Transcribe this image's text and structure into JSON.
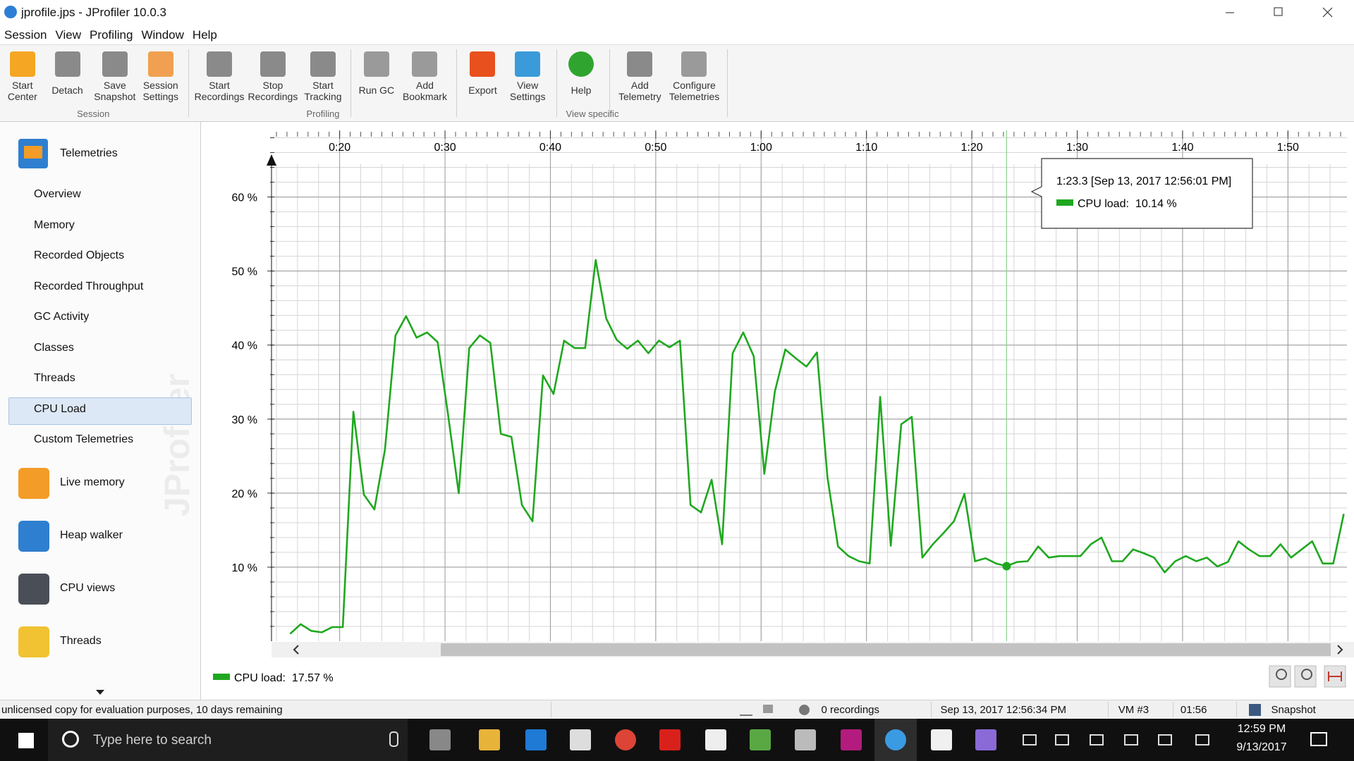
{
  "window": {
    "title": "jprofile.jps - JProfiler 10.0.3"
  },
  "menu": [
    "Session",
    "View",
    "Profiling",
    "Window",
    "Help"
  ],
  "toolbar": {
    "groups": [
      {
        "label": "Session",
        "buttons": [
          "Start\nCenter",
          "Detach",
          "Save\nSnapshot",
          "Session\nSettings"
        ]
      },
      {
        "label": "Profiling",
        "buttons": [
          "Start\nRecordings",
          "Stop\nRecordings",
          "Start\nTracking",
          "Run GC",
          "Add\nBookmark"
        ]
      },
      {
        "label": "View specific",
        "buttons": [
          "Export",
          "View\nSettings",
          "Help",
          "Add\nTelemetry",
          "Configure\nTelemetries"
        ]
      }
    ]
  },
  "sidebar": {
    "header": "Telemetries",
    "items": [
      "Overview",
      "Memory",
      "Recorded Objects",
      "Recorded Throughput",
      "GC Activity",
      "Classes",
      "Threads",
      "CPU Load",
      "Custom Telemetries"
    ],
    "selected": "CPU Load",
    "sections": [
      "Live memory",
      "Heap walker",
      "CPU views",
      "Threads"
    ],
    "watermark": "JProfiler"
  },
  "chart_data": {
    "type": "line",
    "x": [
      15.3,
      16.3,
      17.3,
      18.3,
      19.3,
      20.3,
      21.3,
      22.3,
      23.3,
      24.3,
      25.3,
      26.3,
      27.3,
      28.3,
      29.3,
      30.3,
      31.3,
      32.3,
      33.3,
      34.3,
      35.3,
      36.3,
      37.3,
      38.3,
      39.3,
      40.3,
      41.3,
      42.3,
      43.3,
      44.3,
      45.3,
      46.3,
      47.3,
      48.3,
      49.3,
      50.3,
      51.3,
      52.3,
      53.3,
      54.3,
      55.3,
      56.3,
      57.3,
      58.3,
      59.3,
      60.3,
      61.3,
      62.3,
      63.3,
      64.3,
      65.3,
      66.3,
      67.3,
      68.3,
      69.3,
      70.3,
      71.3,
      72.3,
      73.3,
      74.3,
      75.3,
      76.3,
      77.3,
      78.3,
      79.3,
      80.3,
      81.3,
      82.3,
      83.3,
      84.3,
      85.3,
      86.3,
      87.3,
      88.3,
      89.3,
      90.3,
      91.3,
      92.3,
      93.3,
      94.3,
      95.3,
      96.3,
      97.3,
      98.3,
      99.3,
      100.3,
      101.3,
      102.3,
      103.3,
      104.3,
      105.3,
      106.3,
      107.3,
      108.3,
      109.3,
      110.3,
      111.3,
      112.3,
      113.3,
      114.3,
      115.3
    ],
    "series": [
      {
        "name": "CPU load:",
        "color": "#1fa81f",
        "values": [
          1.0,
          2.3,
          1.4,
          1.2,
          1.9,
          1.9,
          31.0,
          19.8,
          17.8,
          25.9,
          41.3,
          43.9,
          41.0,
          41.7,
          40.4,
          30.5,
          20.0,
          39.6,
          41.3,
          40.3,
          28.0,
          27.6,
          18.4,
          16.2,
          35.9,
          33.4,
          40.6,
          39.6,
          39.6,
          51.5,
          43.6,
          40.7,
          39.5,
          40.6,
          38.9,
          40.6,
          39.7,
          40.6,
          18.4,
          17.4,
          21.8,
          13.1,
          38.9,
          41.7,
          38.5,
          22.6,
          33.7,
          39.4,
          38.2,
          37.1,
          39.0,
          22.1,
          12.8,
          11.5,
          10.8,
          10.5,
          33.0,
          12.9,
          29.3,
          30.3,
          11.3,
          13.1,
          14.6,
          16.2,
          19.9,
          10.8,
          11.2,
          10.5,
          10.14,
          10.7,
          10.8,
          12.8,
          11.3,
          11.5,
          11.5,
          11.5,
          13.1,
          14.0,
          10.8,
          10.8,
          12.4,
          11.9,
          11.3,
          9.3,
          10.8,
          11.5,
          10.8,
          11.3,
          10.1,
          10.7,
          13.5,
          12.4,
          11.5,
          11.5,
          13.1,
          11.3,
          12.4,
          13.5,
          10.5,
          10.5,
          17.2
        ]
      }
    ],
    "xlim": [
      13.8,
      115.6
    ],
    "xticks": [
      {
        "value": 20,
        "label": "0:20"
      },
      {
        "value": 30,
        "label": "0:30"
      },
      {
        "value": 40,
        "label": "0:40"
      },
      {
        "value": 50,
        "label": "0:50"
      },
      {
        "value": 60,
        "label": "1:00"
      },
      {
        "value": 70,
        "label": "1:10"
      },
      {
        "value": 80,
        "label": "1:20"
      },
      {
        "value": 90,
        "label": "1:30"
      },
      {
        "value": 100,
        "label": "1:40"
      },
      {
        "value": 110,
        "label": "1:50"
      }
    ],
    "ylim": [
      0,
      69
    ],
    "yticks": [
      {
        "value": 10,
        "label": "10 %"
      },
      {
        "value": 20,
        "label": "20 %"
      },
      {
        "value": 30,
        "label": "30 %"
      },
      {
        "value": 40,
        "label": "40 %"
      },
      {
        "value": 50,
        "label": "50 %"
      },
      {
        "value": 60,
        "label": "60 %"
      }
    ],
    "grid": true,
    "cursor": {
      "x": 83.3,
      "value": 10.14,
      "title": "1:23.3 [Sep 13, 2017 12:56:01 PM]",
      "value_label": "10.14 %"
    },
    "legend_value_label": "17.57 %"
  },
  "status_bar": {
    "license": "unlicensed copy for evaluation purposes, 10 days remaining",
    "recordings": "0 recordings",
    "timestamp": "Sep 13, 2017 12:56:34 PM",
    "vm": "VM #3",
    "elapsed": "01:56",
    "mode": "Snapshot"
  },
  "taskbar": {
    "search": "Type here to search",
    "time": "12:59 PM",
    "date": "9/13/2017"
  }
}
